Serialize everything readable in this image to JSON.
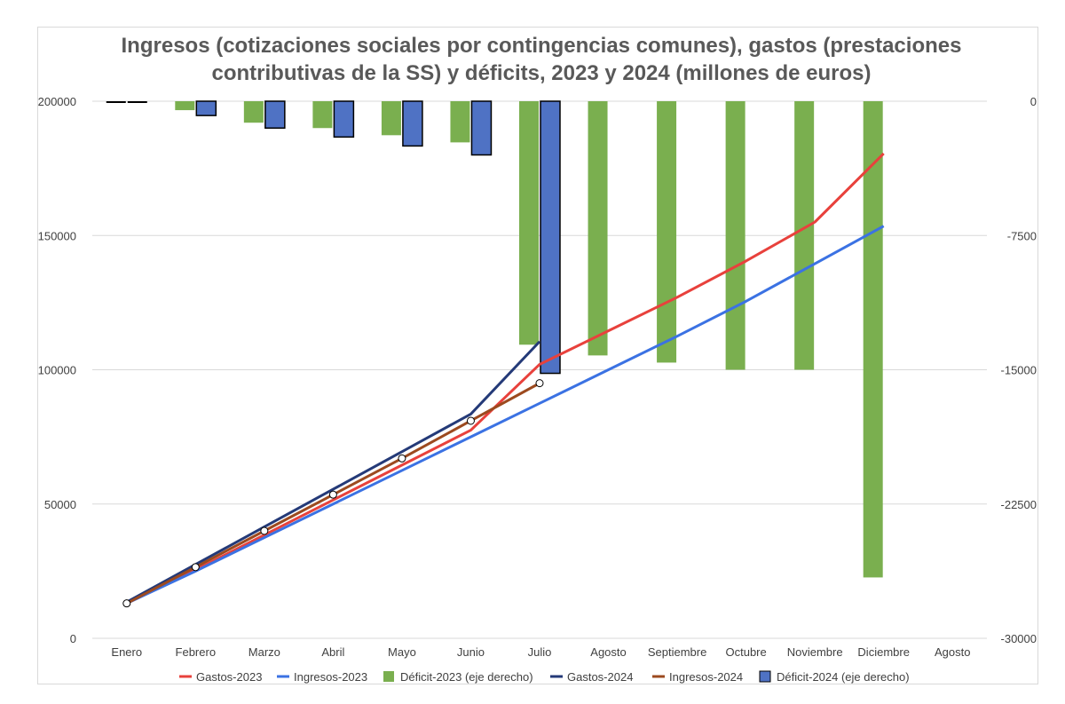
{
  "chart_data": {
    "type": "bar",
    "title": "Ingresos (cotizaciones sociales por contingencias comunes), gastos (prestaciones contributivas de la SS) y déficits, 2023 y 2024  (millones de euros)",
    "categories": [
      "Enero",
      "Febrero",
      "Marzo",
      "Abril",
      "Mayo",
      "Junio",
      "Julio",
      "Agosto",
      "Septiembre",
      "Octubre",
      "Noviembre",
      "Diciembre",
      "Agosto"
    ],
    "y_left": {
      "ylim": [
        0,
        200000
      ],
      "ticks": [
        "0",
        "50000",
        "100000",
        "150000",
        "200000"
      ],
      "tick_values": [
        0,
        50000,
        100000,
        150000,
        200000
      ]
    },
    "y_right": {
      "ylim": [
        -30000,
        0
      ],
      "ticks": [
        "-30000",
        "-22500",
        "-15000",
        "-7500",
        "0"
      ],
      "tick_values": [
        -30000,
        -22500,
        -15000,
        -7500,
        0
      ]
    },
    "grid": true,
    "legend_position": "bottom",
    "series": [
      {
        "name": "Gastos-2023",
        "type": "line",
        "axis": "left",
        "color": "#e8413c",
        "values": [
          13000,
          25500,
          38500,
          51500,
          64500,
          77500,
          102000,
          114500,
          127000,
          140500,
          155000,
          180500,
          null
        ]
      },
      {
        "name": "Ingresos-2023",
        "type": "line",
        "axis": "left",
        "color": "#3b72e3",
        "values": [
          13000,
          25000,
          37500,
          50000,
          62500,
          75000,
          87500,
          100000,
          112500,
          125500,
          139500,
          153500,
          null
        ]
      },
      {
        "name": "Déficit-2023 (eje derecho)",
        "type": "bar",
        "axis": "right",
        "color": "#7aaf4f",
        "values": [
          0,
          -500,
          -1200,
          -1500,
          -1900,
          -2300,
          -13600,
          -14200,
          -14600,
          -15000,
          -15000,
          -26600,
          null
        ]
      },
      {
        "name": "Gastos-2024",
        "type": "line",
        "axis": "left",
        "color": "#243a78",
        "values": [
          13500,
          27500,
          41500,
          55500,
          69500,
          83500,
          110500,
          null,
          null,
          null,
          null,
          null,
          null
        ]
      },
      {
        "name": "Ingresos-2024",
        "type": "line",
        "axis": "left",
        "color": "#9c4a1f",
        "markers": true,
        "values": [
          13000,
          26500,
          40000,
          53500,
          67000,
          81000,
          95000,
          null,
          null,
          null,
          null,
          null,
          null
        ]
      },
      {
        "name": "Déficit-2024 (eje derecho)",
        "type": "bar",
        "axis": "right",
        "color": "#4f72c4",
        "values": [
          -50,
          -800,
          -1500,
          -2000,
          -2500,
          -3000,
          -15200,
          null,
          null,
          null,
          null,
          null,
          null
        ]
      }
    ]
  }
}
